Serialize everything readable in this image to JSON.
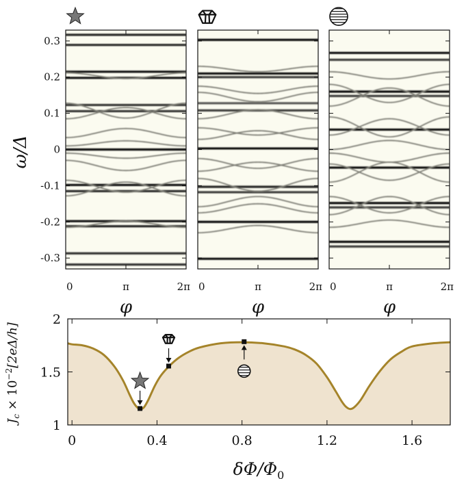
{
  "colors": {
    "panel_bg": "#fbfbf0",
    "band_dark": "#111111",
    "band_light": "#7d7d74",
    "curve": "#a5842a",
    "fill": "#efe3cf",
    "marker": "#111111",
    "star_fill": "#777777",
    "gem_fill": "#ffffff"
  },
  "chart_data": [
    {
      "type": "heatmap",
      "panel_icon": "star-icon",
      "ylabel": "ω/Δ",
      "xlabel": "φ",
      "xlim": [
        0,
        6.2832
      ],
      "ylim": [
        -0.33,
        0.33
      ],
      "x_ticks": [
        "0",
        "π",
        "2π"
      ],
      "y_ticks": [
        "0.3",
        "0.2",
        "0.1",
        "0",
        "-0.1",
        "-0.2",
        "-0.3"
      ],
      "y_tick_values": [
        0.3,
        0.2,
        0.1,
        0,
        -0.1,
        -0.2,
        -0.3
      ],
      "flat_bands": [
        {
          "w": 0.317,
          "strength": 0.9
        },
        {
          "w": 0.289,
          "strength": 0.9
        },
        {
          "w": 0.215,
          "strength": 1.0
        },
        {
          "w": 0.198,
          "strength": 1.0
        },
        {
          "w": 0.123,
          "strength": 0.85
        },
        {
          "w": 0.106,
          "strength": 0.85
        },
        {
          "w": 0.0,
          "strength": 1.0
        },
        {
          "w": -0.098,
          "strength": 1.0
        },
        {
          "w": -0.115,
          "strength": 0.9
        },
        {
          "w": -0.198,
          "strength": 1.0
        },
        {
          "w": -0.212,
          "strength": 0.9
        },
        {
          "w": -0.287,
          "strength": 0.85
        },
        {
          "w": -0.318,
          "strength": 0.85
        }
      ],
      "dispersive_bands": [
        {
          "edge": 0.128,
          "mid": 0.087
        },
        {
          "edge": 0.085,
          "mid": 0.116
        },
        {
          "edge": 0.033,
          "mid": 0.058
        },
        {
          "edge": 0.01,
          "mid": 0.024
        },
        {
          "edge": -0.01,
          "mid": -0.024
        },
        {
          "edge": -0.03,
          "mid": -0.058
        },
        {
          "edge": -0.085,
          "mid": -0.118
        },
        {
          "edge": -0.128,
          "mid": -0.09
        },
        {
          "edge": 0.212,
          "mid": 0.196
        },
        {
          "edge": -0.215,
          "mid": -0.198
        }
      ]
    },
    {
      "type": "heatmap",
      "panel_icon": "crystal-gem-icon",
      "xlabel": "φ",
      "xlim": [
        0,
        6.2832
      ],
      "ylim": [
        -0.33,
        0.33
      ],
      "x_ticks": [
        "0",
        "π",
        "2π"
      ],
      "flat_bands": [
        {
          "w": 0.303,
          "strength": 1.0
        },
        {
          "w": 0.21,
          "strength": 1.0
        },
        {
          "w": 0.2,
          "strength": 0.8
        },
        {
          "w": 0.128,
          "strength": 0.7
        },
        {
          "w": 0.108,
          "strength": 0.8
        },
        {
          "w": 0.003,
          "strength": 1.0
        },
        {
          "w": -0.103,
          "strength": 0.9
        },
        {
          "w": -0.118,
          "strength": 0.8
        },
        {
          "w": -0.2,
          "strength": 1.0
        },
        {
          "w": -0.302,
          "strength": 1.0
        }
      ],
      "dispersive_bands": [
        {
          "edge": 0.158,
          "mid": 0.132
        },
        {
          "edge": 0.085,
          "mid": 0.11
        },
        {
          "edge": 0.06,
          "mid": 0.04
        },
        {
          "edge": 0.028,
          "mid": 0.052
        },
        {
          "edge": -0.025,
          "mid": -0.052
        },
        {
          "edge": -0.06,
          "mid": -0.035
        },
        {
          "edge": -0.08,
          "mid": -0.115
        },
        {
          "edge": -0.158,
          "mid": -0.13
        },
        {
          "edge": 0.175,
          "mid": 0.155
        },
        {
          "edge": -0.175,
          "mid": -0.15
        },
        {
          "edge": 0.23,
          "mid": 0.215
        },
        {
          "edge": -0.23,
          "mid": -0.21
        }
      ]
    },
    {
      "type": "heatmap",
      "panel_icon": "striped-circle-icon",
      "xlabel": "φ",
      "xlim": [
        0,
        6.2832
      ],
      "ylim": [
        -0.33,
        0.33
      ],
      "x_ticks": [
        "0",
        "π",
        "2π"
      ],
      "flat_bands": [
        {
          "w": 0.267,
          "strength": 1.0
        },
        {
          "w": 0.248,
          "strength": 0.8
        },
        {
          "w": 0.16,
          "strength": 1.0
        },
        {
          "w": 0.148,
          "strength": 0.8
        },
        {
          "w": 0.055,
          "strength": 1.0
        },
        {
          "w": -0.05,
          "strength": 1.0
        },
        {
          "w": -0.148,
          "strength": 1.0
        },
        {
          "w": -0.16,
          "strength": 0.8
        },
        {
          "w": -0.255,
          "strength": 1.0
        },
        {
          "w": -0.268,
          "strength": 0.8
        }
      ],
      "dispersive_bands": [
        {
          "edge": 0.18,
          "mid": 0.13
        },
        {
          "edge": 0.12,
          "mid": 0.17
        },
        {
          "edge": 0.09,
          "mid": 0.035
        },
        {
          "edge": 0.04,
          "mid": 0.085
        },
        {
          "edge": 0.0,
          "mid": 0.025
        },
        {
          "edge": -0.01,
          "mid": -0.035
        },
        {
          "edge": -0.04,
          "mid": -0.085
        },
        {
          "edge": -0.09,
          "mid": -0.035
        },
        {
          "edge": -0.13,
          "mid": -0.175
        },
        {
          "edge": -0.18,
          "mid": -0.13
        },
        {
          "edge": 0.215,
          "mid": 0.195
        },
        {
          "edge": -0.215,
          "mid": -0.195
        }
      ]
    },
    {
      "type": "area",
      "ylabel": "J_c × 10^-2 [2eΔ/h]",
      "ylabel_parts": {
        "J": "J",
        "c": "c",
        "times": " × 10",
        "exp": "−2",
        "unit": "[2eΔ/h]"
      },
      "xlabel": "δΦ/Φ0",
      "xlabel_parts": {
        "main": "δΦ/Φ",
        "sub": "0"
      },
      "xlim": [
        -0.02,
        1.78
      ],
      "ylim": [
        1.0,
        2.0
      ],
      "x_ticks": [
        "0",
        "0.4",
        "0.8",
        "1.2",
        "1.6"
      ],
      "x_tick_values": [
        0,
        0.4,
        0.8,
        1.2,
        1.6
      ],
      "y_ticks": [
        "2",
        "1.5",
        "1"
      ],
      "y_tick_values": [
        2,
        1.5,
        1
      ],
      "x": [
        -0.02,
        0.0,
        0.05,
        0.1,
        0.15,
        0.2,
        0.24,
        0.27,
        0.29,
        0.31,
        0.325,
        0.34,
        0.36,
        0.39,
        0.42,
        0.46,
        0.5,
        0.55,
        0.6,
        0.7,
        0.8,
        0.9,
        1.0,
        1.05,
        1.1,
        1.15,
        1.2,
        1.24,
        1.27,
        1.29,
        1.31,
        1.33,
        1.36,
        1.4,
        1.45,
        1.5,
        1.55,
        1.6,
        1.7,
        1.78
      ],
      "y": [
        1.77,
        1.76,
        1.75,
        1.72,
        1.66,
        1.55,
        1.42,
        1.29,
        1.21,
        1.16,
        1.15,
        1.17,
        1.24,
        1.37,
        1.47,
        1.56,
        1.63,
        1.69,
        1.73,
        1.77,
        1.78,
        1.77,
        1.74,
        1.71,
        1.66,
        1.58,
        1.45,
        1.32,
        1.22,
        1.17,
        1.15,
        1.17,
        1.24,
        1.37,
        1.51,
        1.62,
        1.69,
        1.74,
        1.77,
        1.78
      ],
      "markers": [
        {
          "x": 0.32,
          "y": 1.155,
          "icon": "star-icon"
        },
        {
          "x": 0.455,
          "y": 1.555,
          "icon": "crystal-gem-icon"
        },
        {
          "x": 0.81,
          "y": 1.785,
          "icon": "striped-circle-icon"
        }
      ]
    }
  ]
}
